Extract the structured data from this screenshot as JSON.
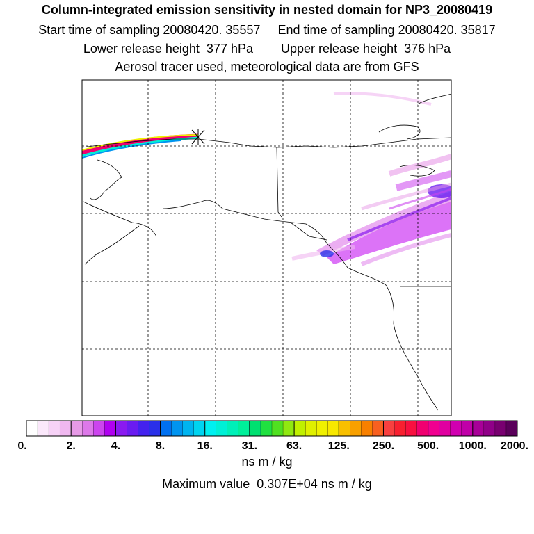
{
  "header": {
    "title": "Column-integrated emission sensitivity in nested domain for NP3_20080419",
    "sampling": "Start time of sampling 20080420. 35557     End time of sampling 20080420. 35817",
    "release": "Lower release height  377 hPa        Upper release height  376 hPa",
    "info": "Aerosol tracer used, meteorological data are from GFS"
  },
  "legend": {
    "tick_labels": [
      "0.",
      "2.",
      "4.",
      "8.",
      "16.",
      "31.",
      "63.",
      "125.",
      "250.",
      "500.",
      "1000.",
      "2000."
    ],
    "units": "ns m / kg",
    "max_value": "Maximum value  0.307E+04 ns m / kg",
    "colors": [
      "#ffffff",
      "#fbe8fb",
      "#f7d2f7",
      "#f0b8f0",
      "#e79ae7",
      "#dd78e9",
      "#cc44ee",
      "#b000f0",
      "#8a1af0",
      "#6a1cf0",
      "#4422ee",
      "#2a30e8",
      "#0070f0",
      "#0094f0",
      "#00b4f0",
      "#00d4f0",
      "#00f0f0",
      "#00f0d6",
      "#00f0b8",
      "#00f09a",
      "#00e070",
      "#20e040",
      "#50e020",
      "#90e810",
      "#c0f000",
      "#e0f000",
      "#f0f000",
      "#f8e800",
      "#f8c000",
      "#f8a000",
      "#f88000",
      "#f86020",
      "#f84040",
      "#f82030",
      "#f81040",
      "#f00070",
      "#f00090",
      "#e000a0",
      "#d000b0",
      "#c000a8",
      "#a80098",
      "#900088",
      "#780070",
      "#5a005a"
    ]
  },
  "map": {
    "receptor_marker": "x-star",
    "sensitivity_color": "#c000f0"
  }
}
